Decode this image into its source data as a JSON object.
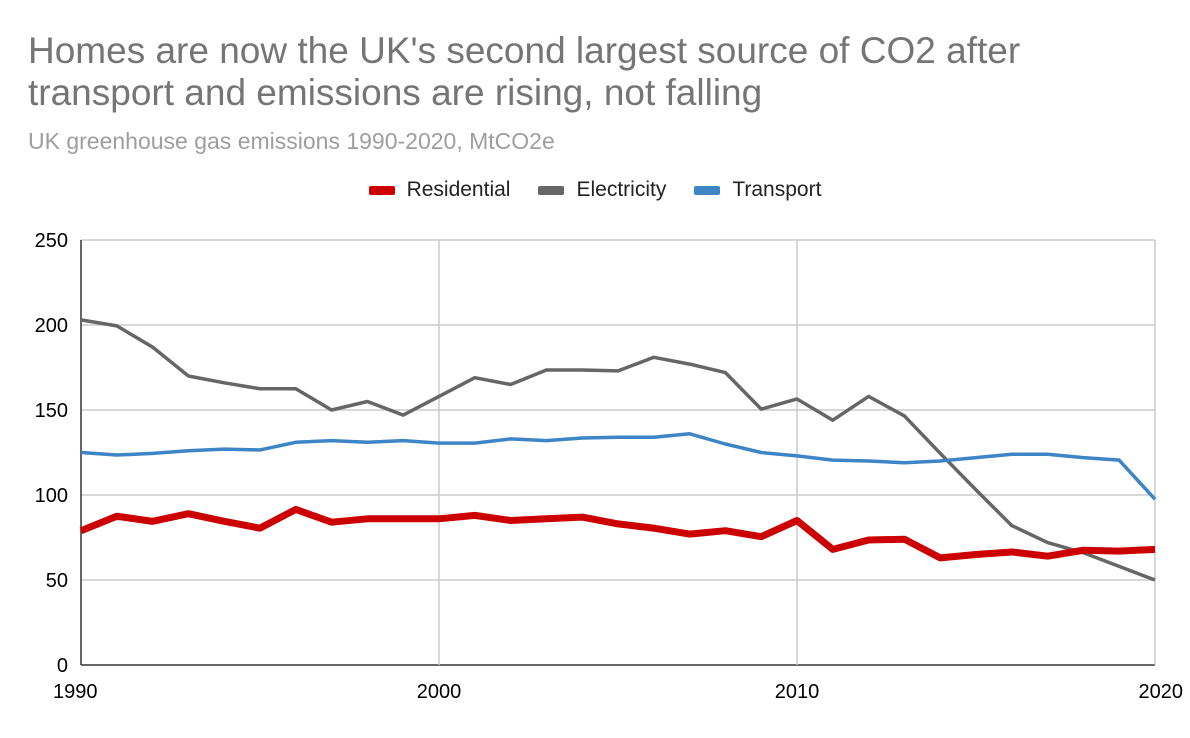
{
  "chart_data": {
    "type": "line",
    "title": "Homes are now the UK's second largest source of CO2 after transport and emissions are rising, not falling",
    "subtitle": "UK greenhouse gas emissions 1990-2020, MtCO2e",
    "xlabel": "",
    "ylabel": "",
    "xlim": [
      1990,
      2020
    ],
    "ylim": [
      0,
      250
    ],
    "x_ticks": [
      "1990",
      "2000",
      "2010",
      "2020"
    ],
    "y_ticks": [
      "0",
      "50",
      "100",
      "150",
      "200",
      "250"
    ],
    "grid": true,
    "legend_position": "top",
    "x": [
      1990,
      1991,
      1992,
      1993,
      1994,
      1995,
      1996,
      1997,
      1998,
      1999,
      2000,
      2001,
      2002,
      2003,
      2004,
      2005,
      2006,
      2007,
      2008,
      2009,
      2010,
      2011,
      2012,
      2013,
      2014,
      2015,
      2016,
      2017,
      2018,
      2019,
      2020
    ],
    "series": [
      {
        "name": "Residential",
        "color": "#cc0000",
        "values": [
          79,
          87.5,
          84.5,
          89,
          84.5,
          80.5,
          91.5,
          84,
          86,
          86,
          86,
          88,
          85,
          86,
          87,
          83,
          80.5,
          77,
          79,
          75.5,
          85,
          68,
          73.5,
          74,
          63,
          65,
          66.5,
          64,
          67.5,
          67,
          68
        ]
      },
      {
        "name": "Electricity",
        "color": "#666666",
        "values": [
          203,
          199.5,
          187,
          170,
          166,
          162.5,
          162.5,
          150,
          155,
          147,
          158,
          169,
          165,
          173.5,
          173.5,
          173,
          181,
          177,
          172,
          150.5,
          156.5,
          144,
          158,
          146.5,
          124.5,
          103,
          82,
          72,
          66,
          58,
          50
        ]
      },
      {
        "name": "Transport",
        "color": "#3d85c6",
        "values": [
          125,
          123.5,
          124.5,
          126,
          127,
          126.5,
          131,
          132,
          131,
          132,
          130.5,
          130.5,
          133,
          132,
          133.5,
          134,
          134,
          136,
          130,
          125,
          123,
          120.5,
          120,
          119,
          120,
          122,
          124,
          124,
          122,
          120.5,
          97.5
        ]
      }
    ]
  }
}
